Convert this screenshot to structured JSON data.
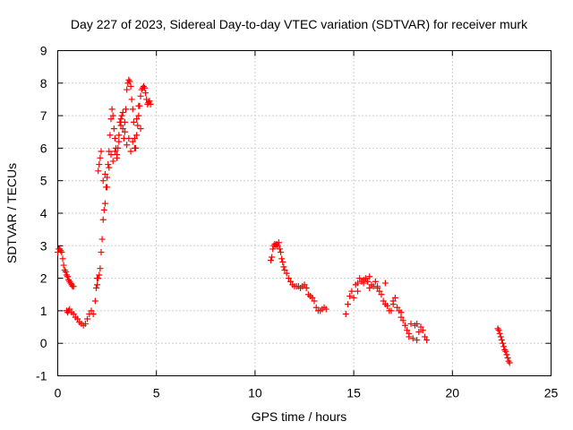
{
  "chart_data": {
    "type": "scatter",
    "title": "Day 227 of 2023, Sidereal Day-to-day VTEC variation (SDTVAR) for receiver murk",
    "xlabel": "GPS time / hours",
    "ylabel": "SDTVAR / TECUs",
    "xlim": [
      0,
      25
    ],
    "ylim": [
      -1,
      9
    ],
    "xticks": [
      "0",
      "5",
      "10",
      "15",
      "20",
      "25"
    ],
    "yticks": [
      "-1",
      "0",
      "1",
      "2",
      "3",
      "4",
      "5",
      "6",
      "7",
      "8",
      "9"
    ],
    "grid": true,
    "marker": "+",
    "color": "#ff0000",
    "series": [
      {
        "name": "SDTVAR",
        "x": [
          0.0,
          0.05,
          0.1,
          0.15,
          0.2,
          0.25,
          0.3,
          0.35,
          0.4,
          0.45,
          0.5,
          0.55,
          0.6,
          0.65,
          0.7,
          0.75,
          0.8,
          0.45,
          0.5,
          0.55,
          0.6,
          0.7,
          0.8,
          0.9,
          1.0,
          1.1,
          1.2,
          1.3,
          1.4,
          1.5,
          1.6,
          1.7,
          1.8,
          1.9,
          1.95,
          2.0,
          2.05,
          2.1,
          2.15,
          2.2,
          2.25,
          2.3,
          2.35,
          2.4,
          2.45,
          2.5,
          2.55,
          2.6,
          2.65,
          2.7,
          2.75,
          2.8,
          2.85,
          2.9,
          2.95,
          3.0,
          3.05,
          3.1,
          3.15,
          3.2,
          3.25,
          3.3,
          3.35,
          3.4,
          3.45,
          3.5,
          3.55,
          3.6,
          3.65,
          3.7,
          3.75,
          3.8,
          3.85,
          3.9,
          3.95,
          4.0,
          4.05,
          4.1,
          4.15,
          4.2,
          4.25,
          4.3,
          4.35,
          4.4,
          4.45,
          4.5,
          4.55,
          4.6,
          4.65,
          4.7,
          2.0,
          2.05,
          2.1,
          2.15,
          2.2,
          2.3,
          2.4,
          2.5,
          2.6,
          2.7,
          2.8,
          2.9,
          3.0,
          3.1,
          3.2,
          3.3,
          3.4,
          3.5,
          3.6,
          3.7,
          3.8,
          3.9,
          4.0,
          4.1,
          4.2,
          10.8,
          10.85,
          10.9,
          10.95,
          11.0,
          11.05,
          11.1,
          11.15,
          11.2,
          11.25,
          11.3,
          11.35,
          11.4,
          11.45,
          11.5,
          11.6,
          11.7,
          11.8,
          11.9,
          12.0,
          12.1,
          12.2,
          12.3,
          12.4,
          12.5,
          12.6,
          12.7,
          12.8,
          12.9,
          13.0,
          13.1,
          13.2,
          13.3,
          13.4,
          13.5,
          13.6,
          14.6,
          14.7,
          14.8,
          14.9,
          15.0,
          15.1,
          15.2,
          15.3,
          15.4,
          15.5,
          15.6,
          15.7,
          15.8,
          15.9,
          16.0,
          16.1,
          16.2,
          16.3,
          16.4,
          16.5,
          16.6,
          16.7,
          16.8,
          16.9,
          17.0,
          17.1,
          17.2,
          17.3,
          17.4,
          17.5,
          17.6,
          17.7,
          17.8,
          17.9,
          18.0,
          18.1,
          18.2,
          18.3,
          18.4,
          18.5,
          18.6,
          18.7,
          15.2,
          15.5,
          15.8,
          16.2,
          16.6,
          17.0,
          17.4,
          17.8,
          18.2,
          22.3,
          22.35,
          22.4,
          22.45,
          22.5,
          22.55,
          22.6,
          22.65,
          22.7,
          22.75,
          22.8,
          22.85,
          22.9
        ],
        "y": [
          2.8,
          2.9,
          2.9,
          2.85,
          2.8,
          2.6,
          2.4,
          2.25,
          2.2,
          2.1,
          2.05,
          1.95,
          1.9,
          1.85,
          1.8,
          1.75,
          1.75,
          1.0,
          0.95,
          1.0,
          1.05,
          0.95,
          0.9,
          0.8,
          0.75,
          0.65,
          0.6,
          0.55,
          0.6,
          0.75,
          0.9,
          1.0,
          0.9,
          1.3,
          1.7,
          2.0,
          2.0,
          2.1,
          2.3,
          2.8,
          3.2,
          3.8,
          4.1,
          4.3,
          4.8,
          5.1,
          5.5,
          5.9,
          6.4,
          6.9,
          7.2,
          7.0,
          6.6,
          6.3,
          6.0,
          5.8,
          6.0,
          6.4,
          6.8,
          6.9,
          7.0,
          6.6,
          6.3,
          6.5,
          7.2,
          7.8,
          8.0,
          8.1,
          8.05,
          7.9,
          7.5,
          7.2,
          6.8,
          6.3,
          6.0,
          6.4,
          6.7,
          7.0,
          7.3,
          7.6,
          7.8,
          7.85,
          7.9,
          7.85,
          7.7,
          7.5,
          7.35,
          7.4,
          7.45,
          7.35,
          1.8,
          5.3,
          5.5,
          5.7,
          5.9,
          5.0,
          5.2,
          4.8,
          5.4,
          5.8,
          5.6,
          5.9,
          5.7,
          6.2,
          6.7,
          7.1,
          6.8,
          6.1,
          6.3,
          5.9,
          6.2,
          6.0,
          6.9,
          7.3,
          6.6,
          2.55,
          2.65,
          2.9,
          3.0,
          3.05,
          3.0,
          3.05,
          3.0,
          3.1,
          2.9,
          2.8,
          2.6,
          2.5,
          2.35,
          2.25,
          2.15,
          2.0,
          1.9,
          1.8,
          1.75,
          1.75,
          1.75,
          1.7,
          1.75,
          1.8,
          1.7,
          1.5,
          1.45,
          1.4,
          1.3,
          1.1,
          1.0,
          1.0,
          1.05,
          1.1,
          1.05,
          0.9,
          1.2,
          1.45,
          1.6,
          1.4,
          1.8,
          1.85,
          2.0,
          1.9,
          1.85,
          2.0,
          1.9,
          1.7,
          1.8,
          1.75,
          1.9,
          1.7,
          1.6,
          1.5,
          1.3,
          1.2,
          1.15,
          1.0,
          1.0,
          1.2,
          1.4,
          1.1,
          1.0,
          0.8,
          0.7,
          0.55,
          0.4,
          0.3,
          0.6,
          0.15,
          0.55,
          0.6,
          0.35,
          0.5,
          0.4,
          0.2,
          0.1,
          1.6,
          1.95,
          2.05,
          1.75,
          1.85,
          1.3,
          0.95,
          0.2,
          0.1,
          0.45,
          0.4,
          0.3,
          0.2,
          0.1,
          0.0,
          -0.1,
          -0.2,
          -0.25,
          -0.35,
          -0.45,
          -0.55,
          -0.6
        ]
      }
    ]
  }
}
